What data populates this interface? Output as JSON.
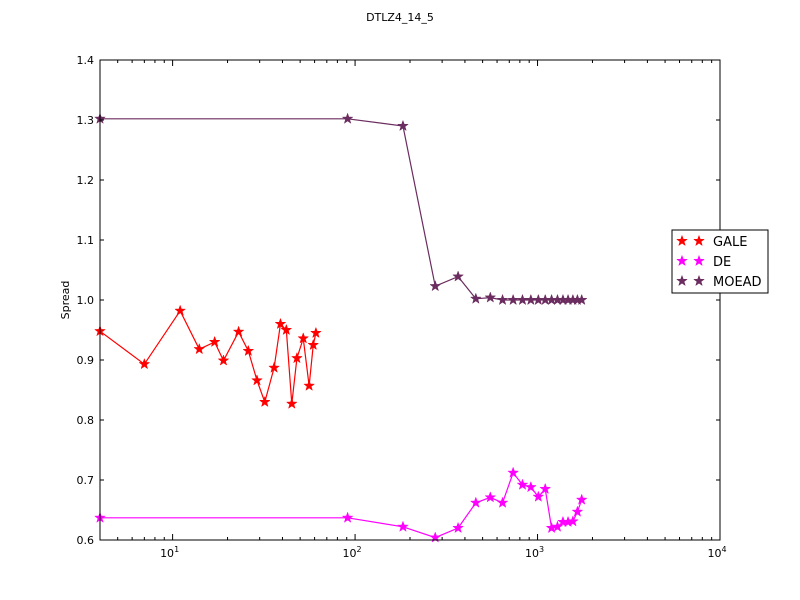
{
  "chart_data": {
    "type": "line",
    "title": "DTLZ4_14_5",
    "xlabel": "",
    "ylabel": "Spread",
    "xscale": "log",
    "xlim": [
      4,
      10000
    ],
    "ylim": [
      0.6,
      1.4
    ],
    "yticks": [
      "0.6",
      "0.7",
      "0.8",
      "0.9",
      "1.0",
      "1.1",
      "1.2",
      "1.3",
      "1.4"
    ],
    "xticks": [
      {
        "base": "10",
        "exp": "1",
        "value": 10
      },
      {
        "base": "10",
        "exp": "2",
        "value": 100
      },
      {
        "base": "10",
        "exp": "3",
        "value": 1000
      },
      {
        "base": "10",
        "exp": "4",
        "value": 10000
      }
    ],
    "grid": false,
    "legend_position": "right",
    "series": [
      {
        "name": "GALE",
        "color": "#ff0000",
        "marker": "star",
        "x": [
          4,
          7,
          11,
          14,
          17,
          19,
          23,
          26,
          29,
          32,
          36,
          39,
          42,
          45,
          48,
          52,
          56,
          59,
          61
        ],
        "y": [
          0.948,
          0.893,
          0.982,
          0.918,
          0.93,
          0.899,
          0.947,
          0.915,
          0.866,
          0.83,
          0.887,
          0.96,
          0.95,
          0.827,
          0.903,
          0.936,
          0.857,
          0.925,
          0.945
        ]
      },
      {
        "name": "DE",
        "color": "#ff00ff",
        "marker": "star",
        "x": [
          4,
          91,
          183,
          275,
          367,
          459,
          551,
          643,
          735,
          827,
          919,
          1010,
          1102,
          1194,
          1286,
          1378,
          1470,
          1562,
          1654,
          1746
        ],
        "y": [
          0.637,
          0.637,
          0.622,
          0.604,
          0.62,
          0.662,
          0.671,
          0.662,
          0.712,
          0.692,
          0.688,
          0.672,
          0.685,
          0.62,
          0.622,
          0.63,
          0.63,
          0.631,
          0.647,
          0.667
        ]
      },
      {
        "name": "MOEAD",
        "color": "#6b2c5f",
        "marker": "star",
        "x": [
          4,
          91,
          183,
          275,
          367,
          459,
          551,
          643,
          735,
          827,
          919,
          1010,
          1102,
          1194,
          1286,
          1378,
          1470,
          1562,
          1654,
          1746
        ],
        "y": [
          1.302,
          1.302,
          1.29,
          1.023,
          1.039,
          1.002,
          1.004,
          1.0,
          1.0,
          1.0,
          1.0,
          1.0,
          1.0,
          1.0,
          1.0,
          1.0,
          1.0,
          1.0,
          1.0,
          1.0
        ]
      }
    ]
  }
}
